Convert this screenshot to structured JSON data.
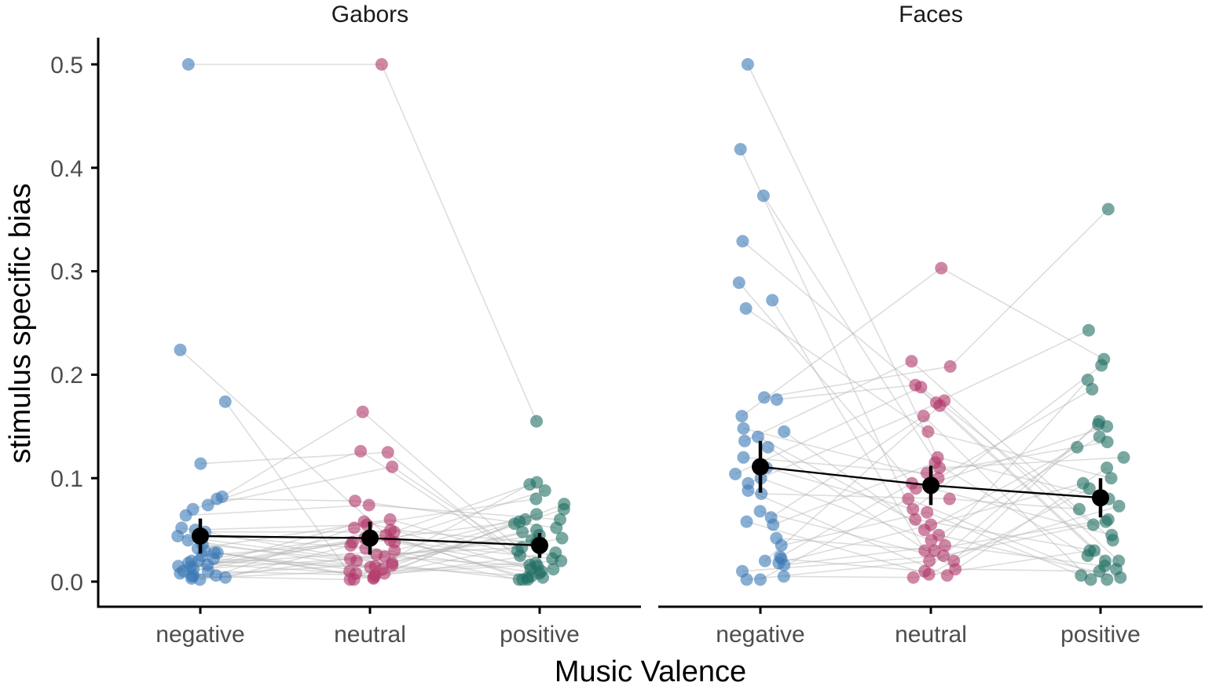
{
  "chart_data": {
    "type": "scatter",
    "xlabel": "Music Valence",
    "ylabel": "stimulus specific bias",
    "ylim": [
      -0.022,
      0.525
    ],
    "yticks": [
      "0.0",
      "0.1",
      "0.2",
      "0.3",
      "0.4",
      "0.5"
    ],
    "categories": [
      "negative",
      "neutral",
      "positive"
    ],
    "colors": {
      "negative": "#3a78b5",
      "neutral": "#b03669",
      "positive": "#1f6e62",
      "mean": "#000000"
    },
    "facets": [
      {
        "title": "Gabors",
        "means": [
          0.044,
          0.042,
          0.035
        ],
        "ci": [
          [
            0.027,
            0.061
          ],
          [
            0.026,
            0.058
          ],
          [
            0.023,
            0.047
          ]
        ],
        "participants": [
          [
            0.5,
            0.5,
            0.155
          ],
          [
            0.224,
            0.038,
            0.012
          ],
          [
            0.174,
            0.002,
            0.094
          ],
          [
            0.114,
            0.125,
            0.004
          ],
          [
            0.082,
            0.164,
            0.018
          ],
          [
            0.08,
            0.078,
            0.052
          ],
          [
            0.074,
            0.111,
            0.03
          ],
          [
            0.07,
            0.126,
            0.01
          ],
          [
            0.064,
            0.074,
            0.06
          ],
          [
            0.05,
            0.055,
            0.08
          ],
          [
            0.048,
            0.048,
            0.096
          ],
          [
            0.045,
            0.032,
            0.002
          ],
          [
            0.04,
            0.012,
            0.07
          ],
          [
            0.036,
            0.02,
            0.045
          ],
          [
            0.032,
            0.06,
            0.025
          ],
          [
            0.028,
            0.004,
            0.056
          ],
          [
            0.025,
            0.04,
            0.088
          ],
          [
            0.022,
            0.015,
            0.005
          ],
          [
            0.02,
            0.05,
            0.038
          ],
          [
            0.018,
            0.008,
            0.02
          ],
          [
            0.015,
            0.03,
            0.065
          ],
          [
            0.012,
            0.024,
            0.015
          ],
          [
            0.01,
            0.006,
            0.042
          ],
          [
            0.008,
            0.045,
            0.002
          ],
          [
            0.006,
            0.018,
            0.05
          ],
          [
            0.005,
            0.002,
            0.028
          ],
          [
            0.004,
            0.035,
            0.008
          ],
          [
            0.003,
            0.01,
            0.06
          ],
          [
            0.002,
            0.026,
            0.033
          ],
          [
            0.01,
            0.058,
            0.012
          ],
          [
            0.03,
            0.003,
            0.075
          ],
          [
            0.014,
            0.042,
            0.022
          ],
          [
            0.02,
            0.014,
            0.048
          ],
          [
            0.006,
            0.052,
            0.004
          ],
          [
            0.044,
            0.022,
            0.04
          ],
          [
            0.028,
            0.008,
            0.016
          ],
          [
            0.016,
            0.038,
            0.058
          ],
          [
            0.052,
            0.016,
            0.002
          ]
        ]
      },
      {
        "title": "Faces",
        "means": [
          0.111,
          0.093,
          0.081
        ],
        "ci": [
          [
            0.086,
            0.136
          ],
          [
            0.074,
            0.112
          ],
          [
            0.062,
            0.1
          ]
        ],
        "participants": [
          [
            0.5,
            0.12,
            0.08
          ],
          [
            0.418,
            0.06,
            0.03
          ],
          [
            0.373,
            0.11,
            0.12
          ],
          [
            0.329,
            0.173,
            0.243
          ],
          [
            0.289,
            0.09,
            0.15
          ],
          [
            0.272,
            0.03,
            0.06
          ],
          [
            0.264,
            0.145,
            0.1
          ],
          [
            0.178,
            0.208,
            0.36
          ],
          [
            0.176,
            0.19,
            0.02
          ],
          [
            0.16,
            0.303,
            0.215
          ],
          [
            0.148,
            0.1,
            0.186
          ],
          [
            0.145,
            0.05,
            0.13
          ],
          [
            0.136,
            0.213,
            0.04
          ],
          [
            0.13,
            0.012,
            0.01
          ],
          [
            0.11,
            0.07,
            0.209
          ],
          [
            0.104,
            0.188,
            0.055
          ],
          [
            0.1,
            0.04,
            0.14
          ],
          [
            0.095,
            0.175,
            0.02
          ],
          [
            0.088,
            0.006,
            0.11
          ],
          [
            0.085,
            0.08,
            0.07
          ],
          [
            0.068,
            0.02,
            0.155
          ],
          [
            0.062,
            0.16,
            0.002
          ],
          [
            0.058,
            0.007,
            0.09
          ],
          [
            0.055,
            0.115,
            0.025
          ],
          [
            0.042,
            0.03,
            0.195
          ],
          [
            0.035,
            0.067,
            0.006
          ],
          [
            0.024,
            0.095,
            0.045
          ],
          [
            0.022,
            0.01,
            0.152
          ],
          [
            0.02,
            0.17,
            0.012
          ],
          [
            0.018,
            0.055,
            0.095
          ],
          [
            0.016,
            0.035,
            0.015
          ],
          [
            0.01,
            0.025,
            0.058
          ],
          [
            0.005,
            0.004,
            0.03
          ],
          [
            0.002,
            0.08,
            0.002
          ],
          [
            0.002,
            0.02,
            0.073
          ],
          [
            0.14,
            0.045,
            0.004
          ],
          [
            0.12,
            0.105,
            0.135
          ]
        ]
      }
    ]
  }
}
